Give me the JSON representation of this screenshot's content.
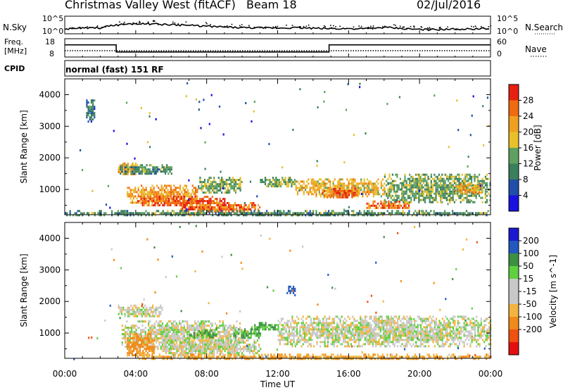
{
  "header": {
    "station": "Christmas Valley West (fitACF)",
    "beam": "Beam 18",
    "date": "02/Jul/2016"
  },
  "noise_panel": {
    "left_label": "N.Sky",
    "left_ticks": [
      "10^5",
      "10^0"
    ],
    "right_ticks": [
      "10^5",
      "10^0"
    ],
    "right_label": "N.Search"
  },
  "freq_panel": {
    "left_label_1": "Freq.",
    "left_label_2": "[MHz]",
    "left_ticks": [
      "18",
      "8"
    ],
    "right_ticks": [
      "60",
      "0"
    ],
    "right_label": "Nave"
  },
  "cpid": {
    "label": "CPID",
    "value": "normal (fast) 151 RF"
  },
  "colors": {
    "power": [
      "#1a10e0",
      "#1f4fa8",
      "#3a7f5c",
      "#5fa060",
      "#e8c02a",
      "#f0a020",
      "#f06a10",
      "#e62010"
    ],
    "velocity": [
      "#e60f0f",
      "#f05010",
      "#f08a18",
      "#f2b43c",
      "#c8c8c8",
      "#c8c8c8",
      "#60d040",
      "#3c9040",
      "#2458c0",
      "#1a18d0"
    ],
    "ground_scatter": "#c8c8c8"
  },
  "chart_data": [
    {
      "type": "heatmap",
      "panel": "power",
      "ylabel": "Slant Range [km]",
      "yticks": [
        "1000",
        "2000",
        "3000",
        "4000"
      ],
      "ylim": [
        200,
        4500
      ],
      "xlim": [
        0,
        24
      ],
      "colorbar": {
        "label": "Power [dB]",
        "ticks": [
          "4",
          "8",
          "12",
          "16",
          "20",
          "24",
          "28"
        ],
        "range": [
          0,
          32
        ]
      },
      "scatter_regions": [
        {
          "t": [
            3.0,
            4.0
          ],
          "r": [
            1450,
            1850
          ],
          "value": 22
        },
        {
          "t": [
            3.1,
            6.0
          ],
          "r": [
            1500,
            1800
          ],
          "value": 12
        },
        {
          "t": [
            3.5,
            7.5
          ],
          "r": [
            600,
            1150
          ],
          "value": 22
        },
        {
          "t": [
            4.0,
            9.0
          ],
          "r": [
            500,
            800
          ],
          "value": 28
        },
        {
          "t": [
            6.5,
            11.0
          ],
          "r": [
            300,
            600
          ],
          "value": 26
        },
        {
          "t": [
            7.5,
            10.0
          ],
          "r": [
            900,
            1400
          ],
          "value": 14
        },
        {
          "t": [
            11.0,
            13.0
          ],
          "r": [
            1100,
            1400
          ],
          "value": 14
        },
        {
          "t": [
            13.0,
            18.0
          ],
          "r": [
            800,
            1350
          ],
          "value": 20
        },
        {
          "t": [
            14.5,
            16.5
          ],
          "r": [
            750,
            1050
          ],
          "value": 26
        },
        {
          "t": [
            17.0,
            19.5
          ],
          "r": [
            400,
            650
          ],
          "value": 26
        },
        {
          "t": [
            18.0,
            24.0
          ],
          "r": [
            600,
            1500
          ],
          "value": 14
        },
        {
          "t": [
            22.0,
            23.5
          ],
          "r": [
            900,
            1200
          ],
          "value": 22
        },
        {
          "t": [
            0.0,
            24.0
          ],
          "r": [
            200,
            350
          ],
          "value": 12
        },
        {
          "t": [
            1.2,
            1.7
          ],
          "r": [
            3150,
            3850
          ],
          "value": 8
        }
      ]
    },
    {
      "type": "heatmap",
      "panel": "velocity",
      "ylabel": "Slant Range [km]",
      "yticks": [
        "1000",
        "2000",
        "3000",
        "4000"
      ],
      "ylim": [
        200,
        4500
      ],
      "xlim": [
        0,
        24
      ],
      "xticks": [
        "00:00",
        "04:00",
        "08:00",
        "12:00",
        "16:00",
        "20:00",
        "00:00"
      ],
      "xlabel": "Time UT",
      "colorbar": {
        "label": "Velocity [m s^-1]",
        "ticks": [
          "200",
          "100",
          "50",
          "15",
          "-15",
          "-50",
          "-100",
          "-200"
        ],
        "range": [
          -250,
          250
        ]
      },
      "scatter_regions": [
        {
          "t": [
            3.0,
            5.5
          ],
          "r": [
            1500,
            1900
          ],
          "value": 0
        },
        {
          "t": [
            3.2,
            10.0
          ],
          "r": [
            500,
            1400
          ],
          "value": 0
        },
        {
          "t": [
            3.5,
            5.0
          ],
          "r": [
            300,
            1000
          ],
          "value": -70
        },
        {
          "t": [
            5.5,
            11.0
          ],
          "r": [
            300,
            800
          ],
          "value": 0
        },
        {
          "t": [
            7.0,
            8.5
          ],
          "r": [
            850,
            1100
          ],
          "value": 60
        },
        {
          "t": [
            9.5,
            11.0
          ],
          "r": [
            850,
            1150
          ],
          "value": 60
        },
        {
          "t": [
            10.5,
            12.0
          ],
          "r": [
            1100,
            1350
          ],
          "value": 60
        },
        {
          "t": [
            12.0,
            24.0
          ],
          "r": [
            600,
            1550
          ],
          "value": 0
        },
        {
          "t": [
            4.0,
            24.0
          ],
          "r": [
            200,
            350
          ],
          "value": -40
        },
        {
          "t": [
            12.5,
            13.0
          ],
          "r": [
            2200,
            2500
          ],
          "value": 150
        }
      ]
    },
    {
      "type": "line",
      "panel": "noise",
      "x": [
        0,
        1,
        2,
        3,
        4,
        5,
        6,
        7,
        8,
        9,
        10,
        11,
        12,
        13,
        14,
        15,
        16,
        17,
        18,
        19,
        20,
        21,
        22,
        23,
        24
      ],
      "n_sky_log10": [
        1.2,
        1.4,
        1.6,
        2.6,
        3.0,
        2.8,
        2.6,
        2.4,
        2.1,
        1.8,
        1.6,
        1.5,
        1.5,
        1.6,
        1.4,
        1.3,
        1.3,
        1.2,
        1.7,
        1.3,
        1.0,
        0.9,
        1.1,
        1.2,
        1.3
      ]
    },
    {
      "type": "line",
      "panel": "frequency",
      "x": [
        0,
        2.9,
        2.9,
        14.9,
        14.9,
        24
      ],
      "freq_mhz": [
        14.8,
        14.8,
        10.6,
        10.6,
        14.8,
        14.8
      ],
      "nave": [
        20,
        20,
        20,
        20,
        20,
        20
      ]
    }
  ]
}
